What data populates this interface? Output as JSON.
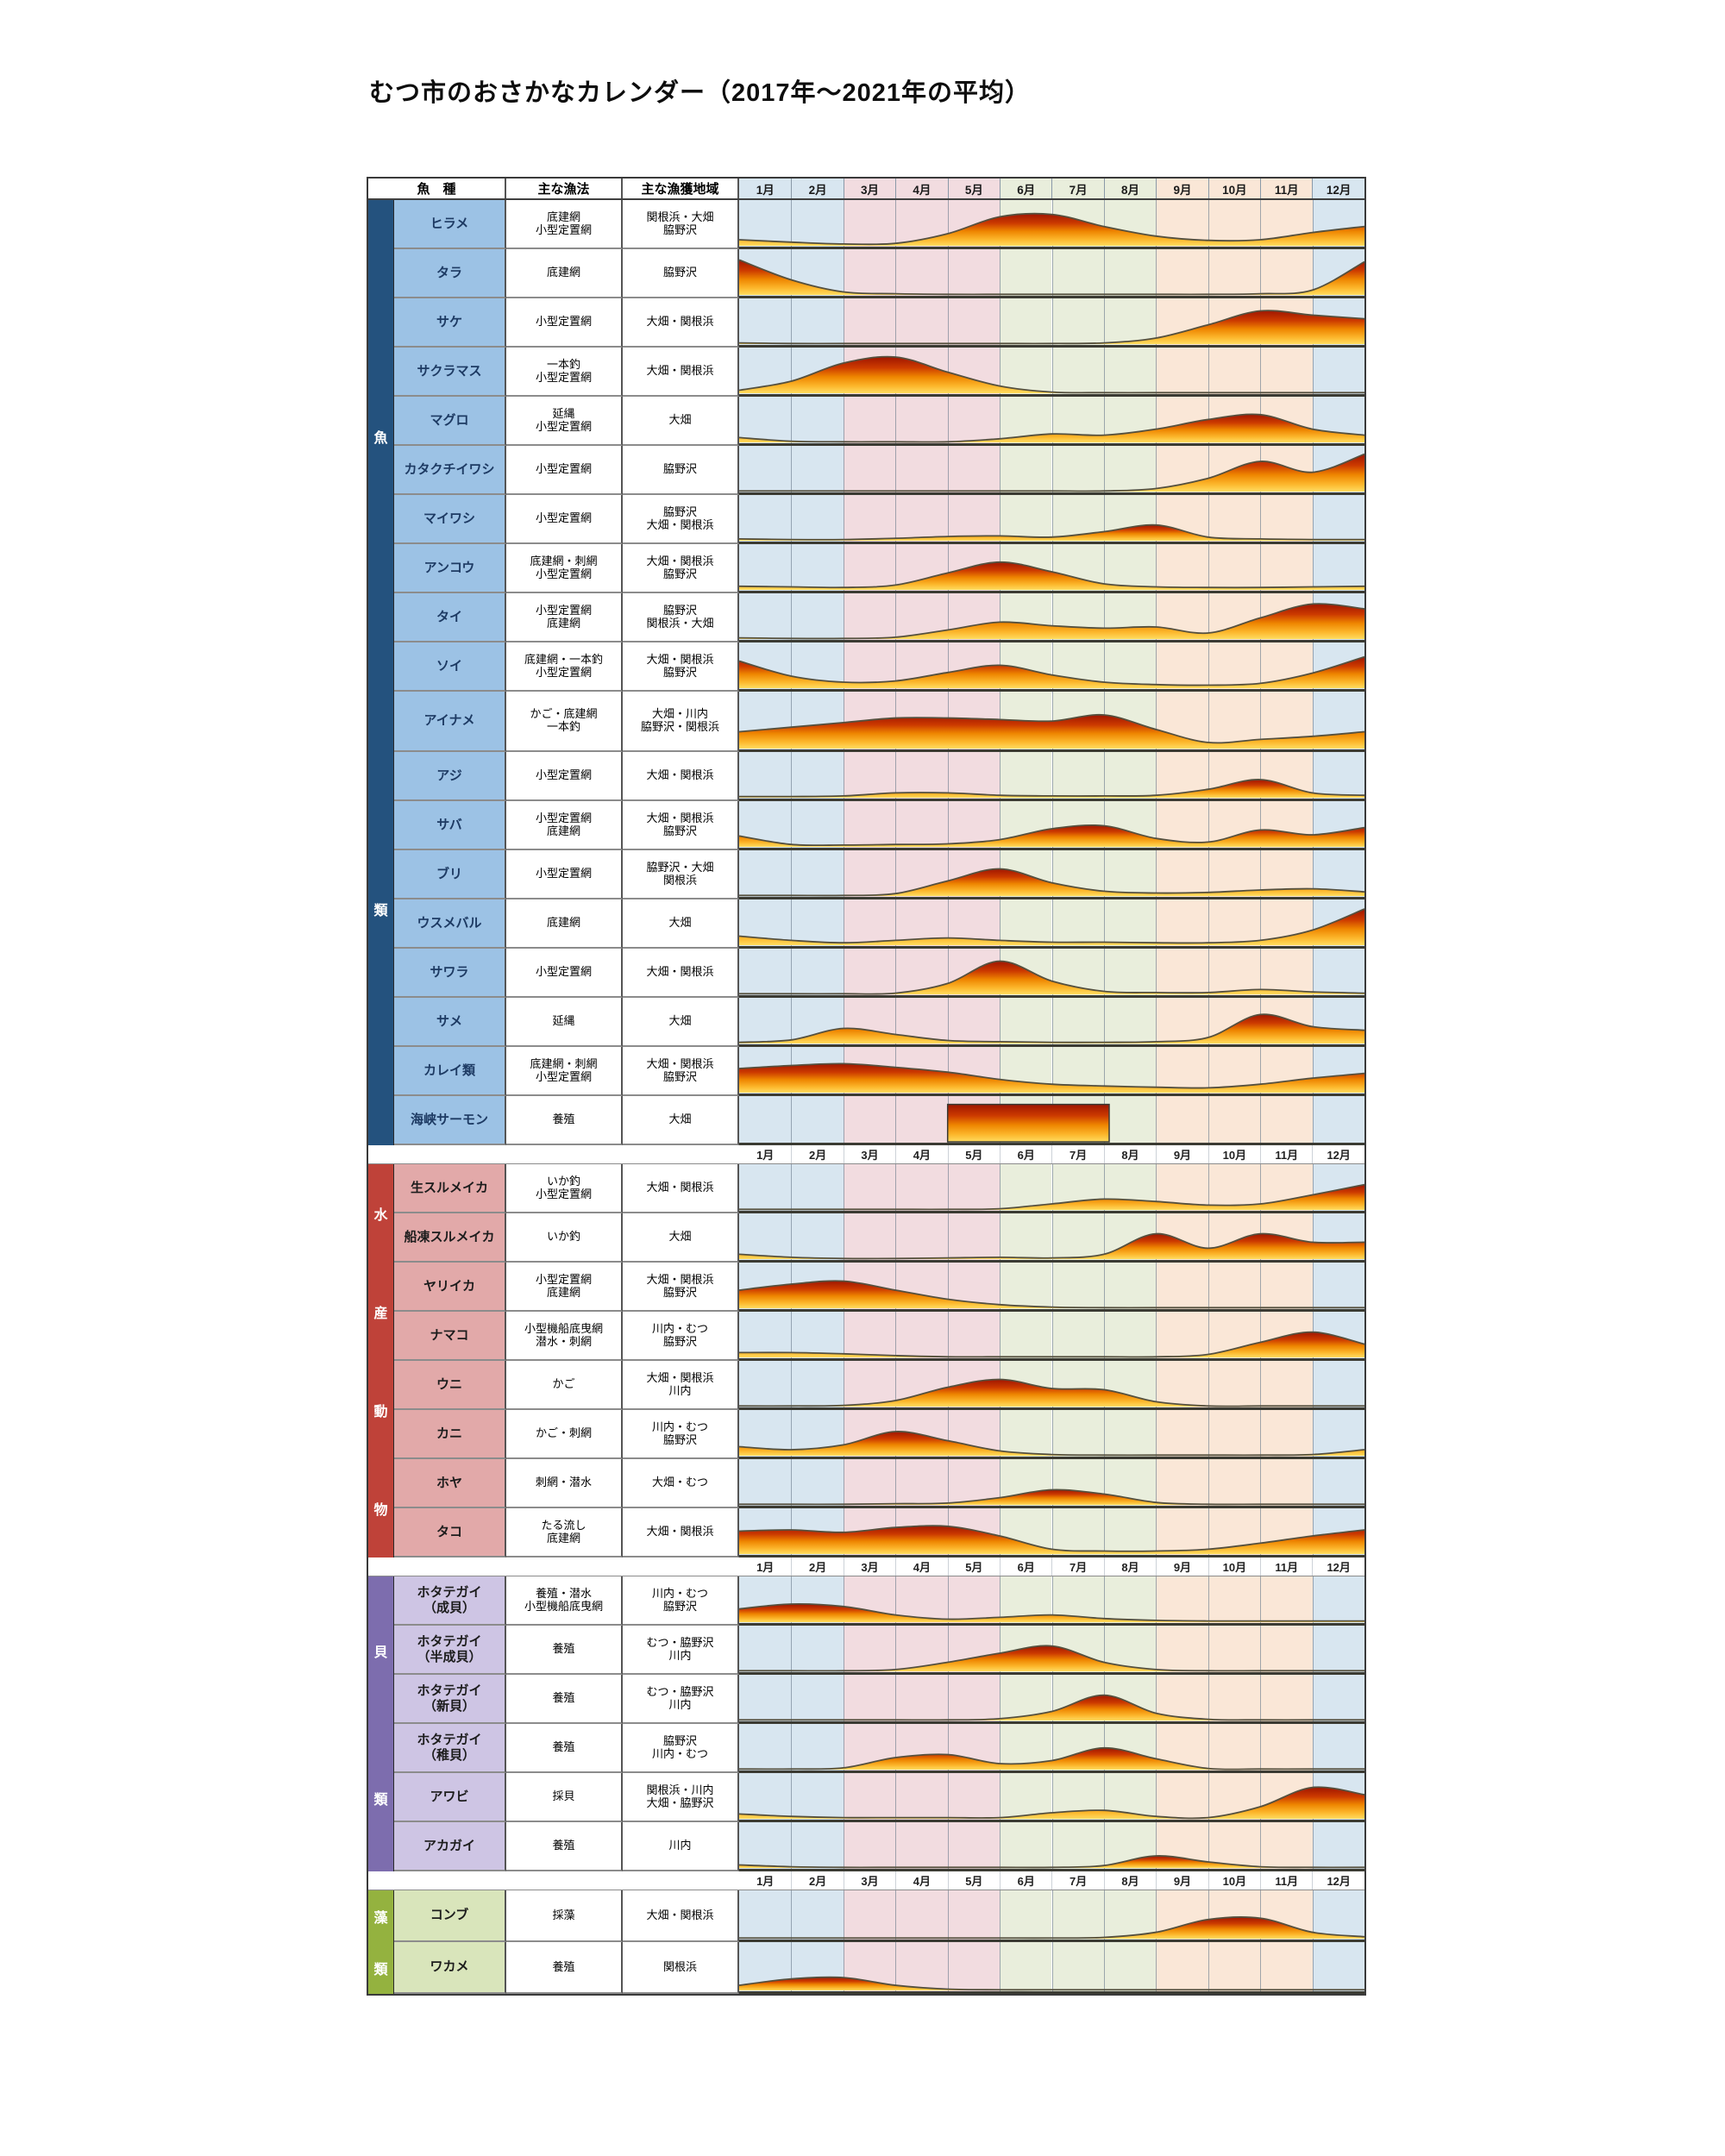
{
  "title": "むつ市のおさかなカレンダー（2017年～2021年の平均）",
  "columns": {
    "species": "魚　種",
    "method": "主な漁法",
    "area": "主な漁獲地域"
  },
  "months": [
    "1月",
    "2月",
    "3月",
    "4月",
    "5月",
    "6月",
    "7月",
    "8月",
    "9月",
    "10月",
    "11月",
    "12月"
  ],
  "palette": {
    "season_colors": [
      "#D8E6F0",
      "#D8E6F0",
      "#F2DCE0",
      "#F2DCE0",
      "#F2DCE0",
      "#E9EEDC",
      "#E9EEDC",
      "#E9EEDC",
      "#FAE7D7",
      "#FAE7D7",
      "#FAE7D7",
      "#D8E6F0"
    ],
    "gradient": {
      "top": "#9E1500",
      "upper": "#CC3A00",
      "mid": "#EE8500",
      "lower": "#FCB62B",
      "bottom": "#FFDC60"
    },
    "line": "#55503E",
    "table_border": "#3A3A3A"
  },
  "chart_data": {
    "type": "area",
    "title": "むつ市のおさかなカレンダー（2017年～2021年の平均）",
    "x_axis": "1月〜12月 (values given at 13 month boundaries Jan-start … Dec-end)",
    "y_axis": "relative catch level 0–70 (source chart has no numeric scale)",
    "legend_position": "none",
    "grid": "monthly vertical gridlines, seasonal background bands (winter blue, spring pink, summer green, autumn peach)",
    "sections": [
      {
        "category": "魚類",
        "chars": [
          "魚",
          "類"
        ],
        "sidebar": "#24527E",
        "cell": "#9CC2E5",
        "text": "#1D3A63",
        "rows": [
          {
            "species": "ヒラメ",
            "method": "底建網\n小型定置網",
            "area": "関根浜・大畑\n脇野沢",
            "values": [
              10,
              6,
              3,
              4,
              20,
              48,
              52,
              32,
              16,
              9,
              10,
              22,
              32
            ]
          },
          {
            "species": "タラ",
            "method": "底建網",
            "area": "脇野沢",
            "values": [
              58,
              25,
              5,
              2,
              1,
              1,
              1,
              1,
              1,
              1,
              2,
              8,
              55
            ]
          },
          {
            "species": "サケ",
            "method": "小型定置網",
            "area": "大畑・関根浜",
            "values": [
              2,
              1,
              1,
              1,
              1,
              1,
              1,
              2,
              10,
              32,
              55,
              48,
              42
            ]
          },
          {
            "species": "サクラマス",
            "method": "一本釣\n小型定置網",
            "area": "大畑・関根浜",
            "values": [
              5,
              20,
              50,
              60,
              35,
              12,
              2,
              1,
              1,
              1,
              1,
              1,
              1
            ]
          },
          {
            "species": "マグロ",
            "method": "延縄\n小型定置網",
            "area": "大畑",
            "values": [
              8,
              2,
              1,
              1,
              1,
              6,
              14,
              12,
              22,
              38,
              46,
              22,
              12
            ]
          },
          {
            "species": "カタクチイワシ",
            "method": "小型定置網",
            "area": "脇野沢",
            "values": [
              1,
              1,
              1,
              1,
              1,
              1,
              1,
              1,
              5,
              22,
              50,
              32,
              62
            ]
          },
          {
            "species": "マイワシ",
            "method": "小型定置網",
            "area": "脇野沢\n大畑・関根浜",
            "values": [
              3,
              2,
              2,
              4,
              7,
              8,
              6,
              15,
              26,
              6,
              3,
              2,
              2
            ]
          },
          {
            "species": "アンコウ",
            "method": "底建網・刺網\n小型定置網",
            "area": "大畑・関根浜\n脇野沢",
            "values": [
              6,
              5,
              4,
              8,
              28,
              46,
              30,
              10,
              5,
              4,
              4,
              5,
              6
            ]
          },
          {
            "species": "タイ",
            "method": "小型定置網\n底建網",
            "area": "脇野沢\n関根浜・大畑",
            "values": [
              2,
              1,
              1,
              3,
              15,
              28,
              22,
              18,
              20,
              10,
              35,
              58,
              50
            ]
          },
          {
            "species": "ソイ",
            "method": "底建網・一本釣\n小型定置網",
            "area": "大畑・関根浜\n脇野沢",
            "values": [
              45,
              20,
              10,
              12,
              26,
              38,
              22,
              10,
              6,
              5,
              8,
              25,
              52
            ]
          },
          {
            "species": "アイナメ",
            "method": "かご・底建網\n一本釣",
            "area": "大畑・川内\n脇野沢・関根浜",
            "values": [
              22,
              28,
              34,
              40,
              40,
              38,
              36,
              44,
              25,
              8,
              12,
              16,
              22
            ],
            "h": 70
          },
          {
            "species": "アジ",
            "method": "小型定置網",
            "area": "大畑・関根浜",
            "values": [
              2,
              2,
              3,
              8,
              8,
              4,
              3,
              3,
              4,
              14,
              30,
              8,
              4
            ]
          },
          {
            "species": "サバ",
            "method": "小型定置網\n底建網",
            "area": "大畑・関根浜\n脇野沢",
            "values": [
              18,
              4,
              3,
              4,
              5,
              12,
              30,
              35,
              14,
              8,
              28,
              20,
              32
            ]
          },
          {
            "species": "ブリ",
            "method": "小型定置網",
            "area": "脇野沢・大畑\n関根浜",
            "values": [
              1,
              1,
              1,
              4,
              25,
              45,
              22,
              8,
              5,
              6,
              10,
              12,
              7
            ]
          },
          {
            "species": "ウスメバル",
            "method": "底建網",
            "area": "大畑",
            "values": [
              15,
              8,
              4,
              8,
              12,
              8,
              5,
              5,
              4,
              4,
              8,
              25,
              60
            ]
          },
          {
            "species": "サワラ",
            "method": "小型定置網",
            "area": "大畑・関根浜",
            "values": [
              1,
              1,
              1,
              2,
              18,
              55,
              22,
              5,
              3,
              3,
              8,
              4,
              2
            ]
          },
          {
            "species": "サメ",
            "method": "延縄",
            "area": "大畑",
            "values": [
              2,
              6,
              25,
              15,
              5,
              3,
              2,
              2,
              3,
              10,
              48,
              28,
              22
            ]
          },
          {
            "species": "カレイ類",
            "method": "底建網・刺網\n小型定置網",
            "area": "大畑・関根浜\n脇野沢",
            "values": [
              40,
              45,
              48,
              42,
              34,
              22,
              14,
              11,
              9,
              8,
              14,
              24,
              32
            ]
          },
          {
            "species": "海峡サーモン",
            "method": "養殖",
            "area": "大畑",
            "block": {
              "from": 4,
              "to": 7.1,
              "level": 62
            }
          }
        ]
      },
      {
        "category": "水産動物",
        "chars": [
          "水",
          "産",
          "動",
          "物"
        ],
        "sidebar": "#BF4239",
        "cell": "#E2A9A9",
        "text": "#1c1c1c",
        "rows": [
          {
            "species": "生スルメイカ",
            "method": "いか釣\n小型定置網",
            "area": "大畑・関根浜",
            "values": [
              1,
              1,
              1,
              1,
              1,
              2,
              10,
              18,
              14,
              8,
              10,
              25,
              42
            ]
          },
          {
            "species": "船凍スルメイカ",
            "method": "いか釣",
            "area": "大畑",
            "values": [
              8,
              3,
              1,
              1,
              2,
              3,
              2,
              8,
              42,
              18,
              42,
              28,
              28
            ]
          },
          {
            "species": "ヤリイカ",
            "method": "小型定置網\n底建網",
            "area": "大畑・関根浜\n脇野沢",
            "values": [
              30,
              40,
              45,
              30,
              15,
              6,
              2,
              1,
              1,
              1,
              1,
              1,
              1
            ]
          },
          {
            "species": "ナマコ",
            "method": "小型機船底曳網\n潜水・刺網",
            "area": "川内・むつ\n脇野沢",
            "values": [
              8,
              8,
              6,
              3,
              1,
              1,
              1,
              1,
              1,
              5,
              25,
              42,
              22
            ]
          },
          {
            "species": "ウニ",
            "method": "かご",
            "area": "大畑・関根浜\n川内",
            "values": [
              1,
              1,
              2,
              10,
              32,
              45,
              30,
              28,
              8,
              1,
              1,
              1,
              1
            ]
          },
          {
            "species": "カニ",
            "method": "かご・刺網",
            "area": "川内・むつ\n脇野沢",
            "values": [
              15,
              10,
              18,
              40,
              25,
              8,
              2,
              1,
              1,
              1,
              1,
              2,
              10
            ]
          },
          {
            "species": "ホヤ",
            "method": "刺網・潜水",
            "area": "大畑・むつ",
            "values": [
              1,
              1,
              1,
              2,
              3,
              12,
              25,
              18,
              4,
              1,
              1,
              1,
              1
            ]
          },
          {
            "species": "タコ",
            "method": "たる流し\n底建網",
            "area": "大畑・関根浜",
            "values": [
              38,
              40,
              36,
              44,
              46,
              30,
              8,
              5,
              5,
              8,
              18,
              30,
              40
            ]
          }
        ]
      },
      {
        "category": "貝類",
        "chars": [
          "貝",
          "類"
        ],
        "sidebar": "#7D6DAE",
        "cell": "#CEC5E4",
        "text": "#1c1c1c",
        "rows": [
          {
            "species": "ホタテガイ\n（成貝）",
            "method": "養殖・潜水\n小型機船底曳網",
            "area": "川内・むつ\n脇野沢",
            "values": [
              22,
              30,
              26,
              12,
              5,
              8,
              12,
              6,
              3,
              2,
              2,
              2,
              2
            ]
          },
          {
            "species": "ホタテガイ\n（半成貝）",
            "method": "養殖",
            "area": "むつ・脇野沢\n川内",
            "values": [
              1,
              1,
              1,
              3,
              15,
              30,
              42,
              15,
              3,
              1,
              1,
              1,
              1
            ]
          },
          {
            "species": "ホタテガイ\n（新貝）",
            "method": "養殖",
            "area": "むつ・脇野沢\n川内",
            "values": [
              1,
              1,
              1,
              1,
              1,
              3,
              15,
              42,
              12,
              2,
              1,
              1,
              1
            ]
          },
          {
            "species": "ホタテガイ\n（稚貝）",
            "method": "養殖",
            "area": "脇野沢\n川内・むつ",
            "values": [
              1,
              1,
              3,
              20,
              25,
              10,
              15,
              36,
              18,
              2,
              1,
              1,
              1
            ]
          },
          {
            "species": "アワビ",
            "method": "採貝",
            "area": "関根浜・川内\n大畑・脇野沢",
            "values": [
              8,
              4,
              2,
              2,
              2,
              2,
              10,
              14,
              4,
              2,
              20,
              52,
              40
            ]
          },
          {
            "species": "アカガイ",
            "method": "養殖",
            "area": "川内",
            "values": [
              5,
              2,
              1,
              1,
              1,
              1,
              1,
              4,
              20,
              10,
              2,
              1,
              1
            ]
          }
        ]
      },
      {
        "category": "藻類",
        "chars": [
          "藻",
          "類"
        ],
        "sidebar": "#94B23F",
        "cell": "#D9E5BB",
        "text": "#1c1c1c",
        "rows": [
          {
            "species": "コンブ",
            "method": "採藻",
            "area": "大畑・関根浜",
            "values": [
              1,
              1,
              1,
              1,
              1,
              1,
              1,
              2,
              10,
              30,
              32,
              10,
              3
            ],
            "h": 60
          },
          {
            "species": "ワカメ",
            "method": "養殖",
            "area": "関根浜",
            "values": [
              8,
              18,
              20,
              8,
              2,
              1,
              1,
              1,
              1,
              1,
              1,
              1,
              1
            ],
            "h": 60
          }
        ]
      }
    ]
  }
}
